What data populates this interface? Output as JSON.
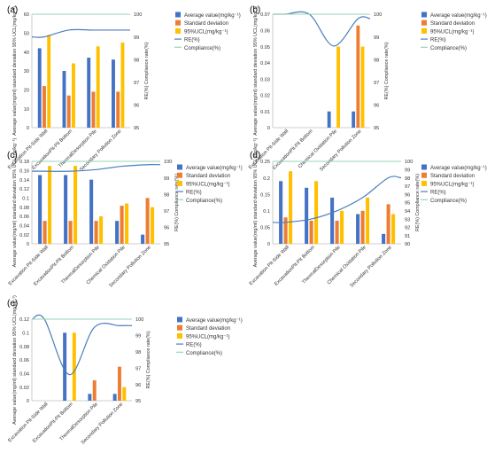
{
  "style": {
    "colors": {
      "average": "#4472C4",
      "std": "#ED7D31",
      "ucl": "#FFC000",
      "re": "#4A7EBB",
      "compliance": "#9BD3B8",
      "axis": "#BFBFBF",
      "text": "#333333"
    }
  },
  "chart_data": [
    {
      "panel": "(a)",
      "type": "bar",
      "title": "",
      "ylabel": "Average value(mg/ml) standard deviation 95% UCL(mg/kg⁻¹)",
      "y2label": "RE(%) Compliance rate(%)",
      "ylim": [
        0,
        60
      ],
      "yticks": [
        "0",
        "10",
        "20",
        "30",
        "40",
        "50",
        "60"
      ],
      "y2lim": [
        95,
        100
      ],
      "y2ticks": [
        "95",
        "96",
        "97",
        "98",
        "99",
        "100"
      ],
      "categories": [
        "Excavation Pit-Side Wall",
        "ExcavationPit-Pit Bottom",
        "ThermalDesorption Pile",
        "Secondary Pollution Zone"
      ],
      "series": [
        {
          "name": "Average value(mg/kg⁻¹)",
          "values": [
            42,
            30,
            37,
            36
          ]
        },
        {
          "name": "Standard deviation",
          "values": [
            22,
            17,
            19,
            19
          ]
        },
        {
          "name": "95%UCL(mg/kg⁻¹)",
          "values": [
            49,
            34,
            43,
            45
          ]
        }
      ],
      "lines": [
        {
          "name": "RE(%)",
          "values": [
            99.0,
            99.3,
            99.3,
            99.3
          ]
        },
        {
          "name": "Compliance(%)",
          "values": [
            100,
            100,
            100,
            100
          ]
        }
      ]
    },
    {
      "panel": "(b)",
      "type": "bar",
      "title": "",
      "ylabel": "Average value(mg/ml) standard deviation 95% UCL(mg/kg⁻¹)",
      "y2label": "RE(%) Compliance rate(%)",
      "ylim": [
        0,
        0.07
      ],
      "yticks": [
        "0",
        "0.01",
        "0.02",
        "0.03",
        "0.04",
        "0.05",
        "0.06",
        "0.07"
      ],
      "y2lim": [
        95,
        100
      ],
      "y2ticks": [
        "95",
        "96",
        "97",
        "98",
        "99",
        "100"
      ],
      "categories": [
        "Excavation Pit-Side Wall",
        "ExcavationPit-Pit Bottom",
        "Chemical Oxidation Pile",
        "Secondary Pollution Zone"
      ],
      "series": [
        {
          "name": "Average value(mg/kg⁻¹)",
          "values": [
            0,
            0,
            0.01,
            0.01
          ]
        },
        {
          "name": "Standard deviation",
          "values": [
            0,
            0,
            0,
            0.063
          ]
        },
        {
          "name": "95%UCL(mg/kg⁻¹)",
          "values": [
            0,
            0,
            0.05,
            0.05
          ]
        }
      ],
      "lines": [
        {
          "name": "RE(%)",
          "values": [
            100,
            100,
            98.6,
            99.8
          ]
        },
        {
          "name": "Compliance(%)",
          "values": [
            100,
            100,
            100,
            100
          ]
        }
      ]
    },
    {
      "panel": "(c)",
      "type": "bar",
      "title": "",
      "ylabel": "Average value(mg/ml) standard deviation 95% UCL(mg/kg⁻¹)",
      "y2label": "RE(%) Compliance rate(%)",
      "ylim": [
        0,
        0.18
      ],
      "yticks": [
        "0",
        "0.02",
        "0.04",
        "0.06",
        "0.08",
        "0.1",
        "0.12",
        "0.14",
        "0.16",
        "0.18"
      ],
      "y2lim": [
        95,
        100
      ],
      "y2ticks": [
        "95",
        "96",
        "97",
        "98",
        "99",
        "100"
      ],
      "categories": [
        "Excavation Pit-Side Wall",
        "ExcavationPit-Pit Bottom",
        "ThermalDesorption Pile",
        "Chemical Oxidation Pile",
        "Secondary Pollution Zone"
      ],
      "series": [
        {
          "name": "Average value(mg/kg⁻¹)",
          "values": [
            0.15,
            0.15,
            0.14,
            0.05,
            0.02
          ]
        },
        {
          "name": "Standard deviation",
          "values": [
            0.05,
            0.05,
            0.05,
            0.083,
            0.1
          ]
        },
        {
          "name": "95%UCL(mg/kg⁻¹)",
          "values": [
            0.17,
            0.17,
            0.06,
            0.088,
            0.08
          ]
        }
      ],
      "lines": [
        {
          "name": "RE(%)",
          "values": [
            99.4,
            99.4,
            99.5,
            99.7,
            99.8
          ]
        },
        {
          "name": "Compliance(%)",
          "values": [
            100,
            100,
            100,
            100,
            100
          ]
        }
      ]
    },
    {
      "panel": "(d)",
      "type": "bar",
      "title": "",
      "ylabel": "Average value(mg/ml) standard deviation 95% UCL(mg/kg⁻¹)",
      "y2label": "RE(%) Compliance rate(%)",
      "ylim": [
        0,
        0.25
      ],
      "yticks": [
        "0",
        "0.05",
        "0.1",
        "0.15",
        "0.2",
        "0.25"
      ],
      "y2lim": [
        90,
        100
      ],
      "y2ticks": [
        "90",
        "91",
        "92",
        "93",
        "94",
        "95",
        "96",
        "97",
        "98",
        "99",
        "100"
      ],
      "categories": [
        "Excavation Pit-Side Wall",
        "ExcavationPit-Pit Bottom",
        "ThermalDesorption Pile",
        "Chemical Oxidation Pile",
        "Secondary Pollution Zone"
      ],
      "series": [
        {
          "name": "Average value(mg/kg⁻¹)",
          "values": [
            0.19,
            0.17,
            0.14,
            0.09,
            0.03
          ]
        },
        {
          "name": "Standard deviation",
          "values": [
            0.08,
            0.07,
            0.07,
            0.1,
            0.12
          ]
        },
        {
          "name": "95%UCL(mg/kg⁻¹)",
          "values": [
            0.22,
            0.19,
            0.1,
            0.14,
            0.09
          ]
        }
      ],
      "lines": [
        {
          "name": "RE(%)",
          "values": [
            92.6,
            93.0,
            94.0,
            95.6,
            98.0
          ]
        },
        {
          "name": "Compliance(%)",
          "values": [
            100,
            100,
            100,
            100,
            100
          ]
        }
      ]
    },
    {
      "panel": "(e)",
      "type": "bar",
      "title": "",
      "ylabel": "Average value(mg/ml) standard deviation 95% UCL(mg/kg⁻¹)",
      "y2label": "RE(%) Compliance rate(%)",
      "ylim": [
        0,
        0.12
      ],
      "yticks": [
        "0",
        "0.02",
        "0.04",
        "0.06",
        "0.08",
        "0.1",
        "0.12"
      ],
      "y2lim": [
        95,
        100
      ],
      "y2ticks": [
        "95",
        "96",
        "97",
        "98",
        "99",
        "100"
      ],
      "categories": [
        "Excavation Pit-Side Wall",
        "ExcavationPit-Pit Bottom",
        "ThermalDesorption Pile",
        "Secondary Pollution Zone"
      ],
      "series": [
        {
          "name": "Average value(mg/kg⁻¹)",
          "values": [
            0,
            0.1,
            0.01,
            0.01
          ]
        },
        {
          "name": "Standard deviation",
          "values": [
            0,
            0,
            0.03,
            0.05
          ]
        },
        {
          "name": "95%UCL(mg/kg⁻¹)",
          "values": [
            0,
            0.1,
            0,
            0.02
          ]
        }
      ],
      "lines": [
        {
          "name": "RE(%)",
          "values": [
            100,
            96.6,
            99.5,
            99.6
          ]
        },
        {
          "name": "Compliance(%)",
          "values": [
            100,
            100,
            100,
            100
          ]
        }
      ]
    }
  ]
}
